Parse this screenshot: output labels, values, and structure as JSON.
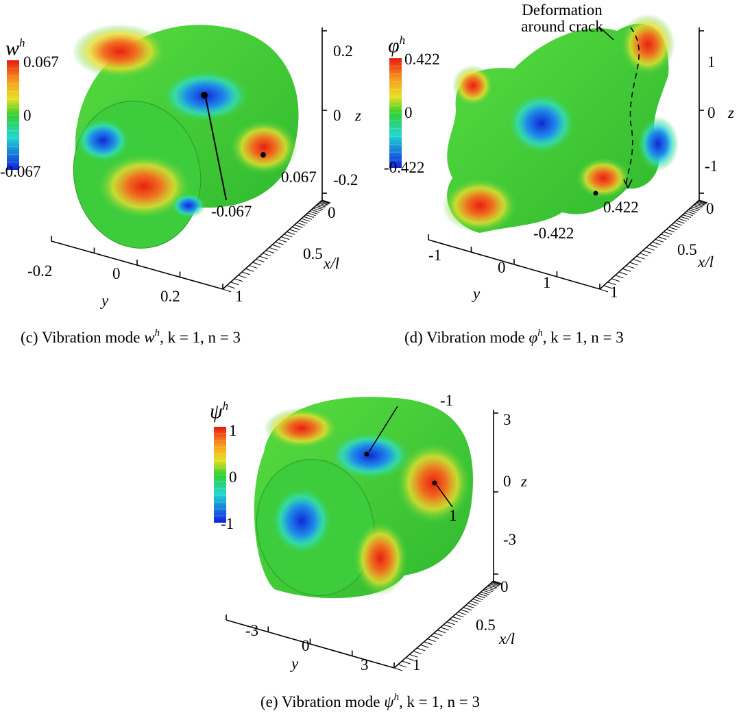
{
  "panels": [
    {
      "colorbar": {
        "symbol": "w",
        "superscript": "h",
        "ticks": [
          "0.067",
          "0",
          "-0.067"
        ]
      },
      "z_axis": {
        "ticks": [
          "0.2",
          "0",
          "-0.2"
        ],
        "label": "z"
      },
      "x_axis": {
        "ticks": [
          "0",
          "0.5",
          "1"
        ],
        "label": "x/l"
      },
      "y_axis": {
        "ticks": [
          "-0.2",
          "0",
          "0.2"
        ],
        "label": "y"
      },
      "annotations": [
        "-0.067",
        "0.067"
      ],
      "caption": {
        "prefix": "(c) Vibration mode ",
        "symbol": "w",
        "superscript": "h",
        "params": ", k = 1, n = 3"
      }
    },
    {
      "colorbar": {
        "symbol": "φ",
        "superscript": "h",
        "ticks": [
          "0.422",
          "0",
          "-0.422"
        ]
      },
      "z_axis": {
        "ticks": [
          "1",
          "0",
          "-1"
        ],
        "label": "z"
      },
      "x_axis": {
        "ticks": [
          "0",
          "0.5",
          "1"
        ],
        "label": "x/l"
      },
      "y_axis": {
        "ticks": [
          "-1",
          "0",
          "1"
        ],
        "label": "y"
      },
      "annotations": [
        "-0.422",
        "0.422"
      ],
      "crack_note": [
        "Deformation",
        "around crack"
      ],
      "caption": {
        "prefix": "(d) Vibration mode ",
        "symbol": "φ",
        "superscript": "h",
        "params": ", k = 1, n = 3"
      }
    },
    {
      "colorbar": {
        "symbol": "ψ",
        "superscript": "h",
        "ticks": [
          "1",
          "0",
          "-1"
        ]
      },
      "z_axis": {
        "ticks": [
          "3",
          "0",
          "-3"
        ],
        "label": "z"
      },
      "x_axis": {
        "ticks": [
          "0",
          "0.5",
          "1"
        ],
        "label": "x/l"
      },
      "y_axis": {
        "ticks": [
          "-3",
          "0",
          "3"
        ],
        "label": "y"
      },
      "annotations": [
        "-1",
        "1"
      ],
      "caption": {
        "prefix": "(e) Vibration mode ",
        "symbol": "ψ",
        "superscript": "h",
        "params": ", k = 1, n = 3"
      }
    }
  ]
}
